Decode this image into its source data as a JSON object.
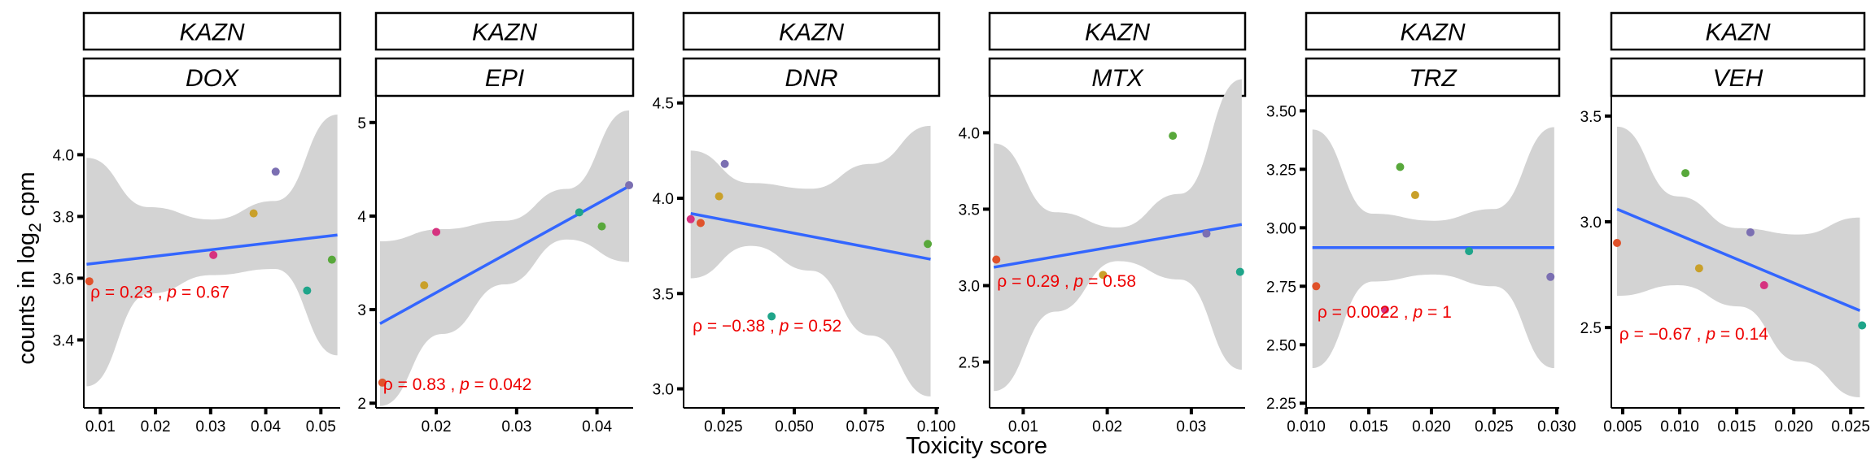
{
  "figure": {
    "xlabel": "Toxicity score",
    "ylabel": {
      "main": "counts in log",
      "sub": "2",
      "tail": " cpm"
    },
    "row_strip": "KAZN"
  },
  "chart_data": [
    {
      "type": "scatter",
      "strip_top": "KAZN",
      "strip_bottom": "DOX",
      "xlim": [
        0.007,
        0.0535
      ],
      "ylim": [
        3.18,
        4.18
      ],
      "xticks": [
        0.01,
        0.02,
        0.03,
        0.04,
        0.05
      ],
      "xtick_labels": [
        "0.01",
        "0.02",
        "0.03",
        "0.04",
        "0.05"
      ],
      "yticks": [
        3.4,
        3.6,
        3.8,
        4.0
      ],
      "ytick_labels": [
        "3.4",
        "3.6",
        "3.8",
        "4.0"
      ],
      "points": [
        {
          "x": 0.008,
          "y": 3.59,
          "color": "#e0522b"
        },
        {
          "x": 0.0305,
          "y": 3.675,
          "color": "#d6327f"
        },
        {
          "x": 0.0378,
          "y": 3.81,
          "color": "#c9a02a"
        },
        {
          "x": 0.0418,
          "y": 3.945,
          "color": "#7b6fb2"
        },
        {
          "x": 0.0475,
          "y": 3.56,
          "color": "#1fa58a"
        },
        {
          "x": 0.052,
          "y": 3.66,
          "color": "#58a83b"
        }
      ],
      "fit": {
        "x": [
          0.0075,
          0.053
        ],
        "y": [
          3.645,
          3.74
        ]
      },
      "band": {
        "upper": [
          3.99,
          3.83,
          3.79,
          3.85,
          4.13
        ],
        "lower": [
          3.25,
          3.55,
          3.61,
          3.63,
          3.35
        ]
      },
      "stat": {
        "rho_label": "ρ = 0.23",
        "p_label": "p = 0.67",
        "pos": [
          0.0082,
          3.555
        ]
      }
    },
    {
      "type": "scatter",
      "strip_top": "KAZN",
      "strip_bottom": "EPI",
      "xlim": [
        0.0125,
        0.0445
      ],
      "ylim": [
        1.95,
        5.25
      ],
      "xticks": [
        0.02,
        0.03,
        0.04
      ],
      "xtick_labels": [
        "0.02",
        "0.03",
        "0.04"
      ],
      "yticks": [
        2,
        3,
        4,
        5
      ],
      "ytick_labels": [
        "2",
        "3",
        "4",
        "5"
      ],
      "points": [
        {
          "x": 0.0133,
          "y": 2.22,
          "color": "#e0522b"
        },
        {
          "x": 0.0185,
          "y": 3.26,
          "color": "#c9a02a"
        },
        {
          "x": 0.02,
          "y": 3.83,
          "color": "#d6327f"
        },
        {
          "x": 0.0378,
          "y": 4.04,
          "color": "#1fa58a"
        },
        {
          "x": 0.0406,
          "y": 3.89,
          "color": "#58a83b"
        },
        {
          "x": 0.044,
          "y": 4.33,
          "color": "#7b6fb2"
        }
      ],
      "fit": {
        "x": [
          0.013,
          0.044
        ],
        "y": [
          2.85,
          4.32
        ]
      },
      "band": {
        "upper": [
          3.73,
          3.86,
          3.95,
          4.29,
          5.13
        ],
        "lower": [
          1.97,
          2.74,
          3.27,
          3.75,
          3.51
        ]
      },
      "stat": {
        "rho_label": "ρ = 0.83",
        "p_label": "p = 0.042",
        "pos": [
          0.0134,
          2.2
        ]
      }
    },
    {
      "type": "scatter",
      "strip_top": "KAZN",
      "strip_bottom": "DNR",
      "xlim": [
        0.011,
        0.101
      ],
      "ylim": [
        2.9,
        4.52
      ],
      "xticks": [
        0.025,
        0.05,
        0.075,
        0.1
      ],
      "xtick_labels": [
        "0.025",
        "0.050",
        "0.075",
        "0.100"
      ],
      "yticks": [
        3.0,
        3.5,
        4.0,
        4.5
      ],
      "ytick_labels": [
        "3.0",
        "3.5",
        "4.0",
        "4.5"
      ],
      "points": [
        {
          "x": 0.0135,
          "y": 3.89,
          "color": "#d6327f"
        },
        {
          "x": 0.017,
          "y": 3.87,
          "color": "#e0522b"
        },
        {
          "x": 0.0235,
          "y": 4.01,
          "color": "#c9a02a"
        },
        {
          "x": 0.0255,
          "y": 4.18,
          "color": "#7b6fb2"
        },
        {
          "x": 0.042,
          "y": 3.38,
          "color": "#1fa58a"
        },
        {
          "x": 0.097,
          "y": 3.76,
          "color": "#58a83b"
        }
      ],
      "fit": {
        "x": [
          0.0135,
          0.098
        ],
        "y": [
          3.92,
          3.68
        ]
      },
      "band": {
        "upper": [
          4.25,
          4.08,
          4.05,
          4.18,
          4.38
        ],
        "lower": [
          3.58,
          3.75,
          3.62,
          3.28,
          2.96
        ]
      },
      "stat": {
        "rho_label": "ρ = −0.38",
        "p_label": "p = 0.52",
        "pos": [
          0.0142,
          3.33
        ]
      }
    },
    {
      "type": "scatter",
      "strip_top": "KAZN",
      "strip_bottom": "MTX",
      "xlim": [
        0.006,
        0.0364
      ],
      "ylim": [
        2.2,
        4.22
      ],
      "xticks": [
        0.01,
        0.02,
        0.03
      ],
      "xtick_labels": [
        "0.01",
        "0.02",
        "0.03"
      ],
      "yticks": [
        2.5,
        3.0,
        3.5,
        4.0
      ],
      "ytick_labels": [
        "2.5",
        "3.0",
        "3.5",
        "4.0"
      ],
      "points": [
        {
          "x": 0.0068,
          "y": 3.17,
          "color": "#e0522b"
        },
        {
          "x": 0.0195,
          "y": 3.07,
          "color": "#c9a02a"
        },
        {
          "x": 0.0278,
          "y": 3.98,
          "color": "#58a83b"
        },
        {
          "x": 0.0318,
          "y": 3.34,
          "color": "#7b6fb2"
        },
        {
          "x": 0.0358,
          "y": 3.09,
          "color": "#1fa58a"
        }
      ],
      "fit": {
        "x": [
          0.0065,
          0.036
        ],
        "y": [
          3.12,
          3.4
        ]
      },
      "band": {
        "upper": [
          3.93,
          3.48,
          3.38,
          3.6,
          4.35
        ],
        "lower": [
          2.31,
          2.83,
          3.16,
          3.04,
          2.45
        ]
      },
      "stat": {
        "rho_label": "ρ = 0.29",
        "p_label": "p = 0.58",
        "pos": [
          0.0069,
          3.03
        ]
      }
    },
    {
      "type": "scatter",
      "strip_top": "KAZN",
      "strip_bottom": "TRZ",
      "xlim": [
        0.01,
        0.0302
      ],
      "ylim": [
        2.23,
        3.55
      ],
      "xticks": [
        0.01,
        0.015,
        0.02,
        0.025,
        0.03
      ],
      "xtick_labels": [
        "0.010",
        "0.015",
        "0.020",
        "0.025",
        "0.030"
      ],
      "yticks": [
        2.25,
        2.5,
        2.75,
        3.0,
        3.25,
        3.5
      ],
      "ytick_labels": [
        "2.25",
        "2.50",
        "2.75",
        "3.00",
        "3.25",
        "3.50"
      ],
      "points": [
        {
          "x": 0.0108,
          "y": 2.75,
          "color": "#e0522b"
        },
        {
          "x": 0.0163,
          "y": 2.65,
          "color": "#d6327f"
        },
        {
          "x": 0.0175,
          "y": 3.26,
          "color": "#58a83b"
        },
        {
          "x": 0.0187,
          "y": 3.14,
          "color": "#c9a02a"
        },
        {
          "x": 0.023,
          "y": 2.9,
          "color": "#1fa58a"
        },
        {
          "x": 0.0295,
          "y": 2.79,
          "color": "#7b6fb2"
        }
      ],
      "fit": {
        "x": [
          0.0105,
          0.0298
        ],
        "y": [
          2.915,
          2.915
        ]
      },
      "band": {
        "upper": [
          3.42,
          3.06,
          3.03,
          3.08,
          3.43
        ],
        "lower": [
          2.4,
          2.77,
          2.8,
          2.75,
          2.4
        ]
      },
      "stat": {
        "rho_label": "ρ = 0.0022",
        "p_label": "p = 1",
        "pos": [
          0.0109,
          2.64
        ]
      }
    },
    {
      "type": "scatter",
      "strip_top": "KAZN",
      "strip_bottom": "VEH",
      "xlim": [
        0.004,
        0.0262
      ],
      "ylim": [
        2.12,
        3.58
      ],
      "xticks": [
        0.005,
        0.01,
        0.015,
        0.02,
        0.025
      ],
      "xtick_labels": [
        "0.005",
        "0.010",
        "0.015",
        "0.020",
        "0.025"
      ],
      "yticks": [
        2.5,
        3.0,
        3.5
      ],
      "ytick_labels": [
        "2.5",
        "3.0",
        "3.5"
      ],
      "points": [
        {
          "x": 0.0045,
          "y": 2.9,
          "color": "#e0522b"
        },
        {
          "x": 0.0105,
          "y": 3.23,
          "color": "#58a83b"
        },
        {
          "x": 0.0117,
          "y": 2.78,
          "color": "#c9a02a"
        },
        {
          "x": 0.0162,
          "y": 2.95,
          "color": "#7b6fb2"
        },
        {
          "x": 0.0174,
          "y": 2.7,
          "color": "#d6327f"
        },
        {
          "x": 0.026,
          "y": 2.51,
          "color": "#1fa58a"
        }
      ],
      "fit": {
        "x": [
          0.0045,
          0.0258
        ],
        "y": [
          3.06,
          2.58
        ]
      },
      "band": {
        "upper": [
          3.45,
          3.12,
          2.97,
          2.94,
          3.02
        ],
        "lower": [
          2.65,
          2.7,
          2.6,
          2.34,
          2.17
        ]
      },
      "stat": {
        "rho_label": "ρ = −0.67",
        "p_label": "p = 0.14",
        "pos": [
          0.0047,
          2.47
        ]
      }
    }
  ]
}
